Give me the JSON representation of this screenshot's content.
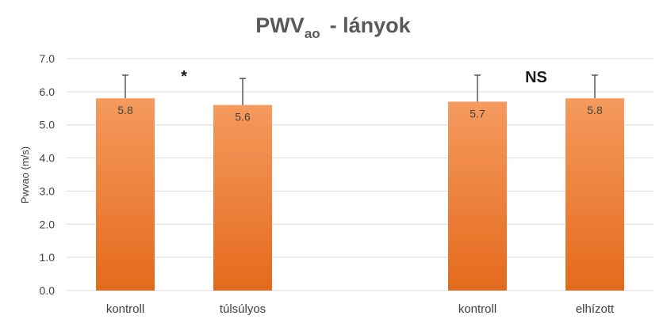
{
  "chart_data": {
    "type": "bar",
    "title": "PWV",
    "title_subscript": "ao",
    "title_suffix": "-  lányok",
    "ylabel": "Pwvao (m/s)",
    "ylim": [
      0,
      7
    ],
    "ytick_step": 1,
    "yticks": [
      "0.0",
      "1.0",
      "2.0",
      "3.0",
      "4.0",
      "5.0",
      "6.0",
      "7.0"
    ],
    "grid": true,
    "categories": [
      "kontroll",
      "túlsúlyos",
      "",
      "kontroll",
      "elhízott"
    ],
    "values": [
      5.8,
      5.6,
      null,
      5.7,
      5.8
    ],
    "data_labels": [
      "5.8",
      "5.6",
      "",
      "5.7",
      "5.8"
    ],
    "error_upper": [
      6.5,
      6.4,
      null,
      6.5,
      6.5
    ],
    "annotations": [
      {
        "text": "*",
        "between": [
          0,
          1
        ]
      },
      {
        "text": "NS",
        "between": [
          3,
          4
        ]
      }
    ],
    "colors": {
      "bar_top": "#f59a5e",
      "bar_bottom": "#e46a1c",
      "grid": "#d9d9d9",
      "error": "#404040"
    }
  }
}
